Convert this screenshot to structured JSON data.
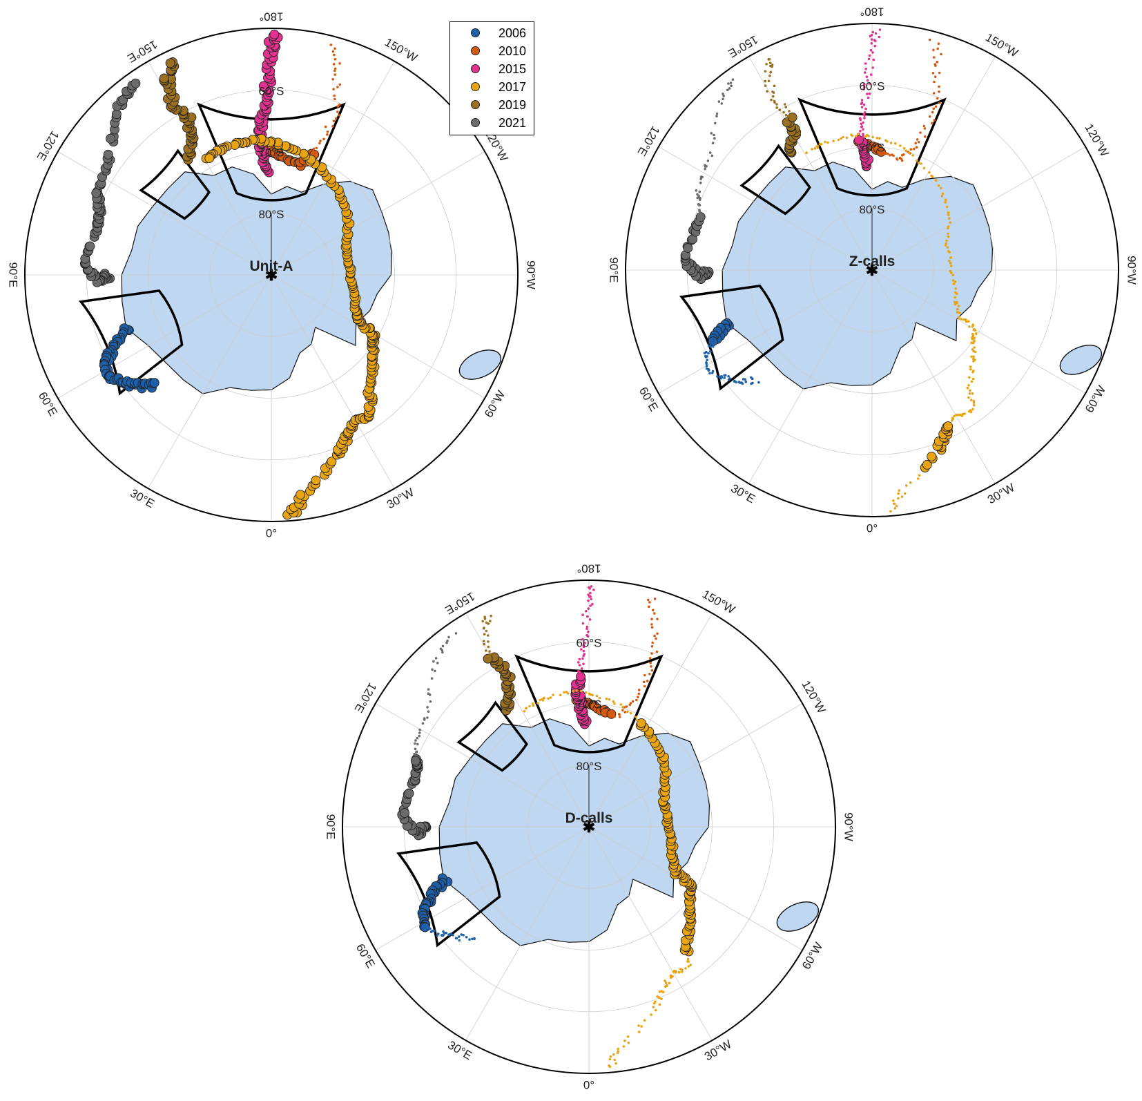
{
  "legend": [
    {
      "label": "2006",
      "color": "#1f5fa8"
    },
    {
      "label": "2010",
      "color": "#d35a10"
    },
    {
      "label": "2015",
      "color": "#e0328e"
    },
    {
      "label": "2017",
      "color": "#e8a412"
    },
    {
      "label": "2019",
      "color": "#9a7020"
    },
    {
      "label": "2021",
      "color": "#6b6b6b"
    }
  ],
  "colors": {
    "continent": "#bfd7f0",
    "coast": "#111111",
    "graticule": "#cccccc",
    "box": "#000000"
  },
  "maps": [
    {
      "id": "unit-a",
      "title": "Unit-A",
      "lon_labels": [
        "180°",
        "150°W",
        "120°W",
        "90°W",
        "60°W",
        "30°W",
        "0°",
        "30°E",
        "60°E",
        "90°E",
        "120°E",
        "150°E"
      ],
      "lat_labels": [
        "60°S",
        "70°S",
        "80°S"
      ]
    },
    {
      "id": "z-calls",
      "title": "Z-calls",
      "lon_labels": [
        "180°",
        "150°W",
        "120°W",
        "90°W",
        "60°W",
        "30°W",
        "0°",
        "30°E",
        "60°E",
        "90°E",
        "120°E",
        "150°E"
      ],
      "lat_labels": [
        "60°S",
        "70°S",
        "80°S"
      ]
    },
    {
      "id": "d-calls",
      "title": "D-calls",
      "lon_labels": [
        "180°",
        "150°W",
        "120°W",
        "90°W",
        "60°W",
        "30°W",
        "0°",
        "30°E",
        "60°E",
        "90°E",
        "120°E",
        "150°E"
      ],
      "lat_labels": [
        "60°S",
        "70°S",
        "80°S"
      ]
    }
  ]
}
